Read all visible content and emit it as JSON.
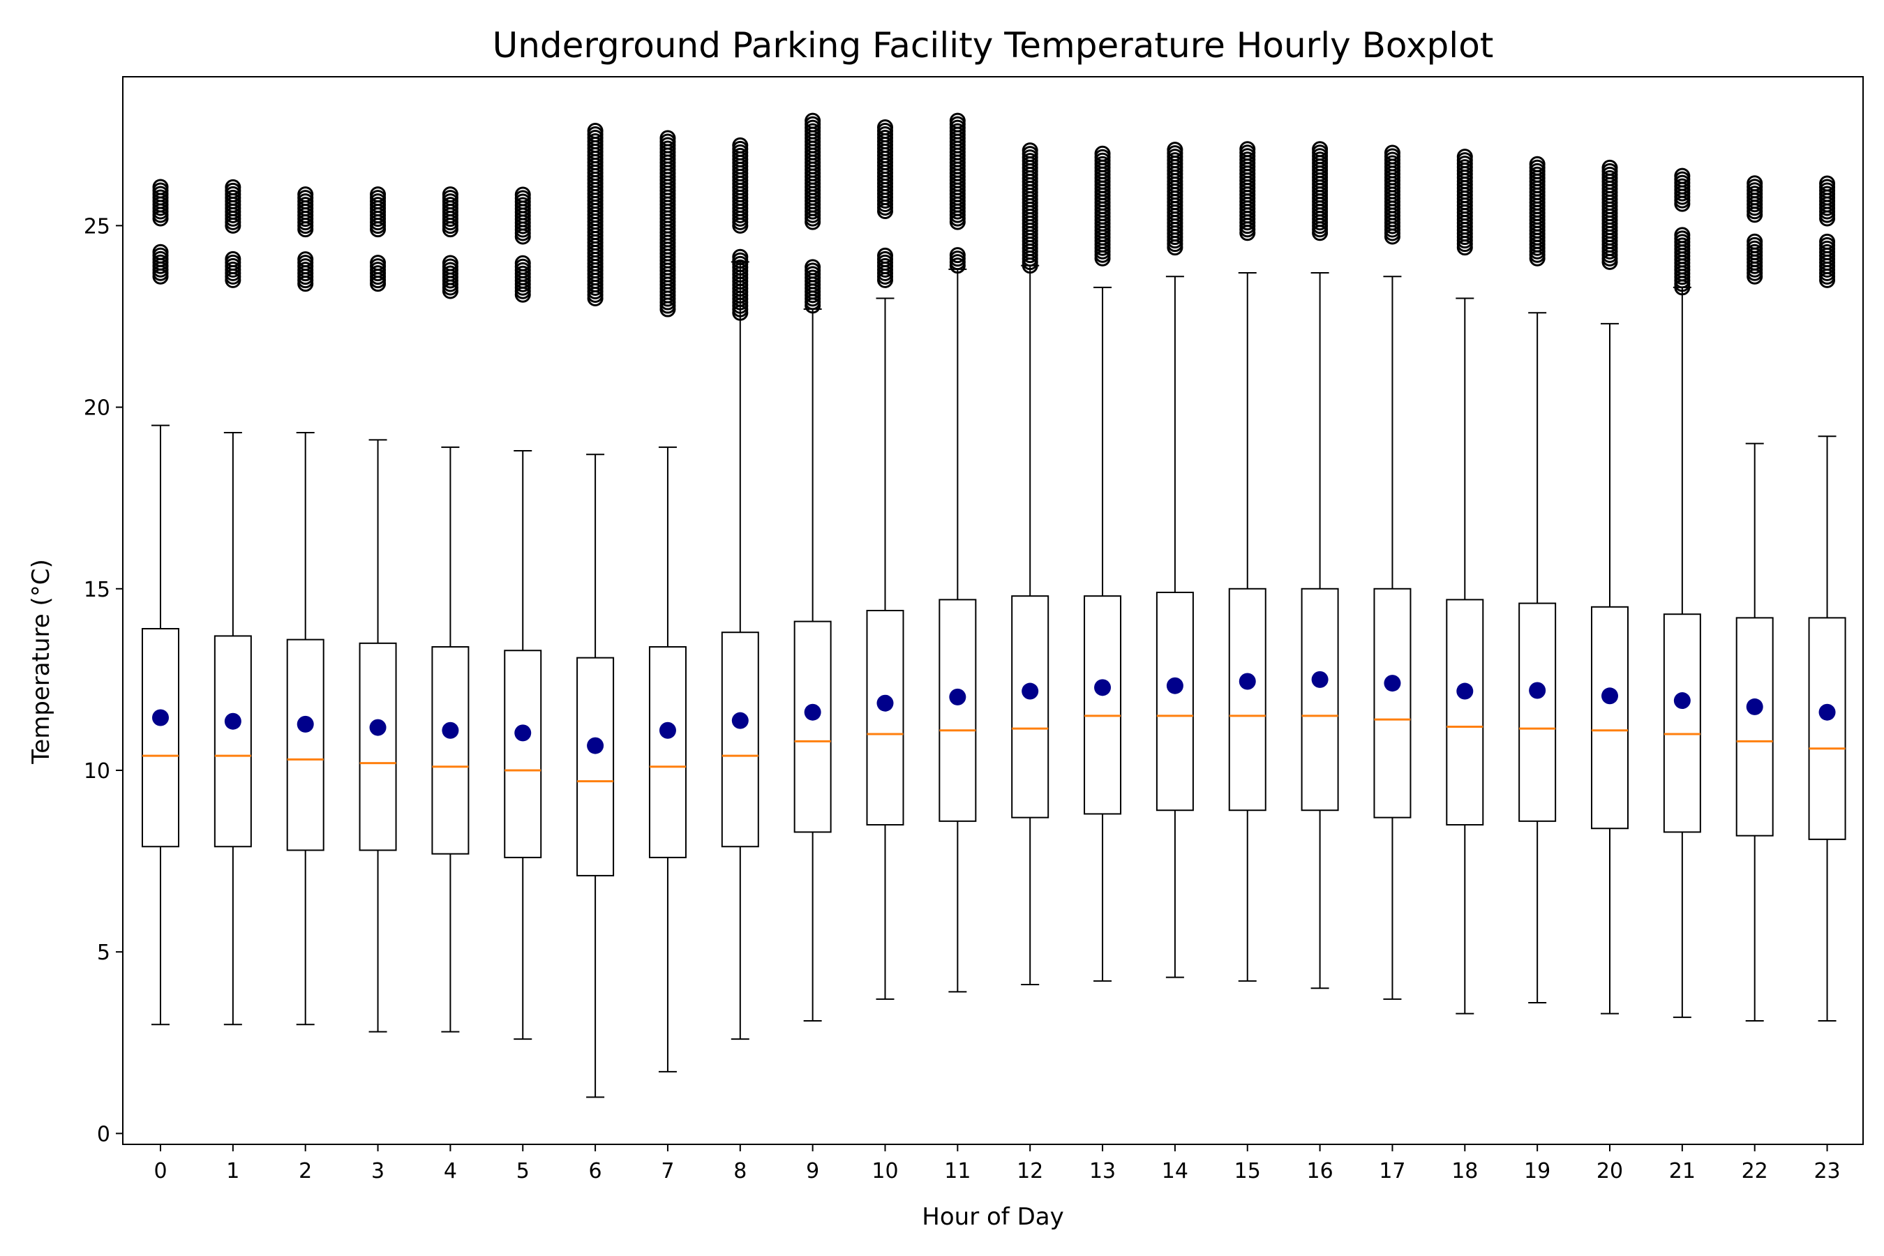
{
  "chart_data": {
    "type": "boxplot",
    "title": "Underground Parking Facility Temperature Hourly Boxplot",
    "xlabel": "Hour of Day",
    "ylabel": "Temperature (°C)",
    "ylim": [
      -0.3,
      29.1
    ],
    "yticks": [
      0,
      5,
      10,
      15,
      20,
      25
    ],
    "grid": false,
    "colors": {
      "box": "#000000",
      "median": "#ff7f0e",
      "mean": "#00008b",
      "outlier": "#000000"
    },
    "categories": [
      "0",
      "1",
      "2",
      "3",
      "4",
      "5",
      "6",
      "7",
      "8",
      "9",
      "10",
      "11",
      "12",
      "13",
      "14",
      "15",
      "16",
      "17",
      "18",
      "19",
      "20",
      "21",
      "22",
      "23"
    ],
    "boxes": [
      {
        "hour": "0",
        "whisker_low": 3.0,
        "q1": 7.9,
        "median": 10.4,
        "q3": 13.9,
        "whisker_high": 19.5,
        "mean": 11.45,
        "outliers": [
          [
            23.6,
            24.3
          ],
          [
            25.2,
            26.1
          ]
        ]
      },
      {
        "hour": "1",
        "whisker_low": 3.0,
        "q1": 7.9,
        "median": 10.4,
        "q3": 13.7,
        "whisker_high": 19.3,
        "mean": 11.35,
        "outliers": [
          [
            23.5,
            24.1
          ],
          [
            25.0,
            26.1
          ]
        ]
      },
      {
        "hour": "2",
        "whisker_low": 3.0,
        "q1": 7.8,
        "median": 10.3,
        "q3": 13.6,
        "whisker_high": 19.3,
        "mean": 11.27,
        "outliers": [
          [
            23.4,
            24.1
          ],
          [
            24.9,
            25.9
          ]
        ]
      },
      {
        "hour": "3",
        "whisker_low": 2.8,
        "q1": 7.8,
        "median": 10.2,
        "q3": 13.5,
        "whisker_high": 19.1,
        "mean": 11.18,
        "outliers": [
          [
            23.4,
            24.0
          ],
          [
            24.9,
            25.9
          ]
        ]
      },
      {
        "hour": "4",
        "whisker_low": 2.8,
        "q1": 7.7,
        "median": 10.1,
        "q3": 13.4,
        "whisker_high": 18.9,
        "mean": 11.1,
        "outliers": [
          [
            23.2,
            24.0
          ],
          [
            24.9,
            25.9
          ]
        ]
      },
      {
        "hour": "5",
        "whisker_low": 2.6,
        "q1": 7.6,
        "median": 10.0,
        "q3": 13.3,
        "whisker_high": 18.8,
        "mean": 11.03,
        "outliers": [
          [
            23.1,
            24.0
          ],
          [
            24.7,
            25.9
          ]
        ]
      },
      {
        "hour": "6",
        "whisker_low": 1.0,
        "q1": 7.1,
        "median": 9.7,
        "q3": 13.1,
        "whisker_high": 18.7,
        "mean": 10.68,
        "outliers": [
          [
            23.0,
            27.7
          ]
        ]
      },
      {
        "hour": "7",
        "whisker_low": 1.7,
        "q1": 7.6,
        "median": 10.1,
        "q3": 13.4,
        "whisker_high": 18.9,
        "mean": 11.1,
        "outliers": [
          [
            22.7,
            27.5
          ]
        ]
      },
      {
        "hour": "8",
        "whisker_low": 2.6,
        "q1": 7.9,
        "median": 10.4,
        "q3": 13.8,
        "whisker_high": 24.0,
        "mean": 11.37,
        "outliers": [
          [
            22.6,
            24.2
          ],
          [
            25.0,
            27.3
          ]
        ]
      },
      {
        "hour": "9",
        "whisker_low": 3.1,
        "q1": 8.3,
        "median": 10.8,
        "q3": 14.1,
        "whisker_high": 22.7,
        "mean": 11.6,
        "outliers": [
          [
            22.8,
            23.9
          ],
          [
            25.1,
            27.9
          ]
        ]
      },
      {
        "hour": "10",
        "whisker_low": 3.7,
        "q1": 8.5,
        "median": 11.0,
        "q3": 14.4,
        "whisker_high": 23.0,
        "mean": 11.85,
        "outliers": [
          [
            23.5,
            24.2
          ],
          [
            25.4,
            27.8
          ]
        ]
      },
      {
        "hour": "11",
        "whisker_low": 3.9,
        "q1": 8.6,
        "median": 11.1,
        "q3": 14.7,
        "whisker_high": 23.8,
        "mean": 12.02,
        "outliers": [
          [
            23.9,
            24.2
          ],
          [
            25.1,
            27.9
          ]
        ]
      },
      {
        "hour": "12",
        "whisker_low": 4.1,
        "q1": 8.7,
        "median": 11.15,
        "q3": 14.8,
        "whisker_high": 23.9,
        "mean": 12.18,
        "outliers": [
          [
            23.9,
            27.1
          ]
        ]
      },
      {
        "hour": "13",
        "whisker_low": 4.2,
        "q1": 8.8,
        "median": 11.5,
        "q3": 14.8,
        "whisker_high": 23.3,
        "mean": 12.28,
        "outliers": [
          [
            24.1,
            27.0
          ]
        ]
      },
      {
        "hour": "14",
        "whisker_low": 4.3,
        "q1": 8.9,
        "median": 11.5,
        "q3": 14.9,
        "whisker_high": 23.6,
        "mean": 12.33,
        "outliers": [
          [
            24.4,
            27.1
          ]
        ]
      },
      {
        "hour": "15",
        "whisker_low": 4.2,
        "q1": 8.9,
        "median": 11.5,
        "q3": 15.0,
        "whisker_high": 23.7,
        "mean": 12.45,
        "outliers": [
          [
            24.8,
            27.2
          ]
        ]
      },
      {
        "hour": "16",
        "whisker_low": 4.0,
        "q1": 8.9,
        "median": 11.5,
        "q3": 15.0,
        "whisker_high": 23.7,
        "mean": 12.5,
        "outliers": [
          [
            24.8,
            27.2
          ]
        ]
      },
      {
        "hour": "17",
        "whisker_low": 3.7,
        "q1": 8.7,
        "median": 11.4,
        "q3": 15.0,
        "whisker_high": 23.6,
        "mean": 12.4,
        "outliers": [
          [
            24.7,
            27.1
          ]
        ]
      },
      {
        "hour": "18",
        "whisker_low": 3.3,
        "q1": 8.5,
        "median": 11.2,
        "q3": 14.7,
        "whisker_high": 23.0,
        "mean": 12.18,
        "outliers": [
          [
            24.4,
            26.9
          ]
        ]
      },
      {
        "hour": "19",
        "whisker_low": 3.6,
        "q1": 8.6,
        "median": 11.15,
        "q3": 14.6,
        "whisker_high": 22.6,
        "mean": 12.2,
        "outliers": [
          [
            24.1,
            26.7
          ]
        ]
      },
      {
        "hour": "20",
        "whisker_low": 3.3,
        "q1": 8.4,
        "median": 11.1,
        "q3": 14.5,
        "whisker_high": 22.3,
        "mean": 12.05,
        "outliers": [
          [
            24.0,
            26.6
          ]
        ]
      },
      {
        "hour": "21",
        "whisker_low": 3.2,
        "q1": 8.3,
        "median": 11.0,
        "q3": 14.3,
        "whisker_high": 23.3,
        "mean": 11.92,
        "outliers": [
          [
            23.3,
            24.8
          ],
          [
            25.6,
            26.4
          ]
        ]
      },
      {
        "hour": "22",
        "whisker_low": 3.1,
        "q1": 8.2,
        "median": 10.8,
        "q3": 14.2,
        "whisker_high": 19.0,
        "mean": 11.75,
        "outliers": [
          [
            23.6,
            24.6
          ],
          [
            25.3,
            26.2
          ]
        ]
      },
      {
        "hour": "23",
        "whisker_low": 3.1,
        "q1": 8.1,
        "median": 10.6,
        "q3": 14.2,
        "whisker_high": 19.2,
        "mean": 11.6,
        "outliers": [
          [
            23.5,
            24.6
          ],
          [
            25.2,
            26.2
          ]
        ]
      }
    ]
  }
}
